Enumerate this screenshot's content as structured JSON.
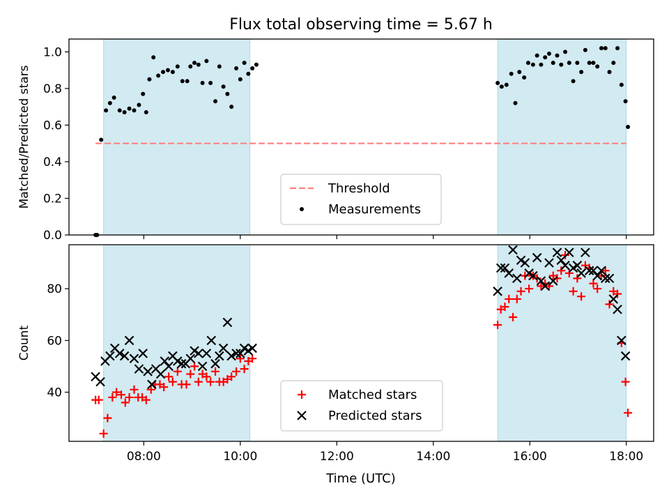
{
  "chart_data": {
    "title": "Flux total observing time = 5.67 h",
    "xlabel": "Time (UTC)",
    "x_ticks": [
      "08:00",
      "10:00",
      "12:00",
      "14:00",
      "16:00",
      "18:00"
    ],
    "x_range": [
      "06:27",
      "18:34"
    ],
    "shaded_intervals": [
      [
        "07:10",
        "10:12"
      ],
      [
        "15:20",
        "18:00"
      ]
    ],
    "shade_color": "#add8e6",
    "panels": [
      {
        "type": "scatter",
        "ylabel": "Matched/Predicted stars",
        "ylim": [
          0.0,
          1.07
        ],
        "y_ticks": [
          "0.0",
          "0.2",
          "0.4",
          "0.6",
          "0.8",
          "1.0"
        ],
        "legend_placement": "lower center",
        "threshold": {
          "name": "Threshold",
          "value": 0.5,
          "x": [
            "07:00",
            "18:00"
          ],
          "color": "#ff8080",
          "style": "dashed"
        },
        "series": [
          {
            "name": "Measurements",
            "color": "#000000",
            "marker": "dot",
            "points": [
              [
                "07:00",
                0.0
              ],
              [
                "07:02",
                0.0
              ],
              [
                "07:07",
                0.52
              ],
              [
                "07:13",
                0.68
              ],
              [
                "07:18",
                0.72
              ],
              [
                "07:23",
                0.75
              ],
              [
                "07:30",
                0.68
              ],
              [
                "07:36",
                0.67
              ],
              [
                "07:42",
                0.69
              ],
              [
                "07:48",
                0.68
              ],
              [
                "07:54",
                0.71
              ],
              [
                "07:59",
                0.77
              ],
              [
                "08:03",
                0.67
              ],
              [
                "08:07",
                0.85
              ],
              [
                "08:12",
                0.97
              ],
              [
                "08:18",
                0.87
              ],
              [
                "08:24",
                0.89
              ],
              [
                "08:30",
                0.9
              ],
              [
                "08:36",
                0.89
              ],
              [
                "08:42",
                0.92
              ],
              [
                "08:48",
                0.84
              ],
              [
                "08:54",
                0.84
              ],
              [
                "08:58",
                0.92
              ],
              [
                "09:03",
                0.94
              ],
              [
                "09:08",
                0.93
              ],
              [
                "09:13",
                0.83
              ],
              [
                "09:18",
                0.95
              ],
              [
                "09:23",
                0.83
              ],
              [
                "09:29",
                0.73
              ],
              [
                "09:34",
                0.92
              ],
              [
                "09:39",
                0.81
              ],
              [
                "09:44",
                0.77
              ],
              [
                "09:49",
                0.7
              ],
              [
                "09:55",
                0.91
              ],
              [
                "10:00",
                0.85
              ],
              [
                "10:05",
                0.94
              ],
              [
                "10:10",
                0.88
              ],
              [
                "10:15",
                0.91
              ],
              [
                "10:20",
                0.93
              ],
              [
                "15:20",
                0.83
              ],
              [
                "15:25",
                0.81
              ],
              [
                "15:31",
                0.82
              ],
              [
                "15:37",
                0.88
              ],
              [
                "15:42",
                0.72
              ],
              [
                "15:47",
                0.89
              ],
              [
                "15:53",
                0.86
              ],
              [
                "15:58",
                0.94
              ],
              [
                "16:04",
                0.93
              ],
              [
                "16:09",
                0.98
              ],
              [
                "16:14",
                0.93
              ],
              [
                "16:19",
                0.97
              ],
              [
                "16:24",
                0.99
              ],
              [
                "16:29",
                0.94
              ],
              [
                "16:34",
                0.98
              ],
              [
                "16:39",
                0.93
              ],
              [
                "16:44",
                1.0
              ],
              [
                "16:49",
                0.94
              ],
              [
                "16:54",
                0.84
              ],
              [
                "16:59",
                0.94
              ],
              [
                "17:04",
                0.89
              ],
              [
                "17:09",
                1.01
              ],
              [
                "17:14",
                0.94
              ],
              [
                "17:19",
                0.94
              ],
              [
                "17:24",
                0.92
              ],
              [
                "17:29",
                1.02
              ],
              [
                "17:34",
                1.02
              ],
              [
                "17:39",
                0.89
              ],
              [
                "17:44",
                0.94
              ],
              [
                "17:49",
                1.02
              ],
              [
                "17:54",
                0.82
              ],
              [
                "17:59",
                0.73
              ],
              [
                "18:02",
                0.59
              ]
            ]
          }
        ]
      },
      {
        "type": "scatter",
        "ylabel": "Count",
        "ylim": [
          21,
          97
        ],
        "y_ticks": [
          "40",
          "60",
          "80"
        ],
        "legend_placement": "lower center",
        "series": [
          {
            "name": "Matched stars",
            "color": "#ff0000",
            "marker": "plus",
            "points": [
              [
                "07:00",
                37
              ],
              [
                "07:04",
                37
              ],
              [
                "07:10",
                24
              ],
              [
                "07:15",
                30
              ],
              [
                "07:21",
                38
              ],
              [
                "07:26",
                40
              ],
              [
                "07:32",
                39
              ],
              [
                "07:37",
                36
              ],
              [
                "07:42",
                38
              ],
              [
                "07:48",
                41
              ],
              [
                "07:53",
                38
              ],
              [
                "07:58",
                38
              ],
              [
                "08:03",
                37
              ],
              [
                "08:09",
                41
              ],
              [
                "08:14",
                43
              ],
              [
                "08:20",
                43
              ],
              [
                "08:25",
                42
              ],
              [
                "08:31",
                46
              ],
              [
                "08:36",
                44
              ],
              [
                "08:42",
                48
              ],
              [
                "08:47",
                43
              ],
              [
                "08:53",
                43
              ],
              [
                "08:58",
                47
              ],
              [
                "09:03",
                50
              ],
              [
                "09:08",
                44
              ],
              [
                "09:13",
                47
              ],
              [
                "09:18",
                46
              ],
              [
                "09:23",
                44
              ],
              [
                "09:29",
                48
              ],
              [
                "09:34",
                44
              ],
              [
                "09:39",
                44
              ],
              [
                "09:44",
                45
              ],
              [
                "09:49",
                46
              ],
              [
                "09:55",
                48
              ],
              [
                "10:00",
                53
              ],
              [
                "10:05",
                49
              ],
              [
                "10:10",
                52
              ],
              [
                "10:15",
                53
              ],
              [
                "15:20",
                66
              ],
              [
                "15:24",
                72
              ],
              [
                "15:29",
                73
              ],
              [
                "15:34",
                76
              ],
              [
                "15:39",
                69
              ],
              [
                "15:44",
                76
              ],
              [
                "15:49",
                79
              ],
              [
                "15:54",
                85
              ],
              [
                "15:59",
                80
              ],
              [
                "16:04",
                85
              ],
              [
                "16:09",
                84
              ],
              [
                "16:14",
                81
              ],
              [
                "16:19",
                82
              ],
              [
                "16:24",
                81
              ],
              [
                "16:29",
                85
              ],
              [
                "16:34",
                84
              ],
              [
                "16:39",
                87
              ],
              [
                "16:44",
                93
              ],
              [
                "16:49",
                86
              ],
              [
                "16:54",
                79
              ],
              [
                "16:59",
                84
              ],
              [
                "17:04",
                77
              ],
              [
                "17:09",
                89
              ],
              [
                "17:14",
                88
              ],
              [
                "17:19",
                82
              ],
              [
                "17:24",
                80
              ],
              [
                "17:29",
                85
              ],
              [
                "17:34",
                87
              ],
              [
                "17:39",
                74
              ],
              [
                "17:44",
                79
              ],
              [
                "17:49",
                78
              ],
              [
                "17:54",
                59
              ],
              [
                "17:59",
                44
              ],
              [
                "18:02",
                32
              ]
            ]
          },
          {
            "name": "Predicted stars",
            "color": "#000000",
            "marker": "x",
            "points": [
              [
                "07:00",
                46
              ],
              [
                "07:06",
                44
              ],
              [
                "07:12",
                52
              ],
              [
                "07:18",
                54
              ],
              [
                "07:24",
                57
              ],
              [
                "07:30",
                55
              ],
              [
                "07:36",
                54
              ],
              [
                "07:42",
                60
              ],
              [
                "07:48",
                53
              ],
              [
                "07:54",
                49
              ],
              [
                "07:59",
                55
              ],
              [
                "08:05",
                48
              ],
              [
                "08:10",
                43
              ],
              [
                "08:15",
                49
              ],
              [
                "08:21",
                47
              ],
              [
                "08:26",
                52
              ],
              [
                "08:31",
                50
              ],
              [
                "08:36",
                54
              ],
              [
                "08:42",
                52
              ],
              [
                "08:47",
                51
              ],
              [
                "08:52",
                51
              ],
              [
                "08:58",
                53
              ],
              [
                "09:03",
                56
              ],
              [
                "09:08",
                55
              ],
              [
                "09:13",
                50
              ],
              [
                "09:18",
                55
              ],
              [
                "09:24",
                60
              ],
              [
                "09:29",
                51
              ],
              [
                "09:34",
                54
              ],
              [
                "09:39",
                57
              ],
              [
                "09:44",
                67
              ],
              [
                "09:49",
                54
              ],
              [
                "09:55",
                55
              ],
              [
                "10:00",
                55
              ],
              [
                "10:05",
                57
              ],
              [
                "10:10",
                56
              ],
              [
                "10:15",
                57
              ],
              [
                "15:20",
                79
              ],
              [
                "15:24",
                88
              ],
              [
                "15:29",
                88
              ],
              [
                "15:34",
                86
              ],
              [
                "15:39",
                95
              ],
              [
                "15:44",
                84
              ],
              [
                "15:49",
                91
              ],
              [
                "15:54",
                90
              ],
              [
                "15:59",
                86
              ],
              [
                "16:04",
                85
              ],
              [
                "16:09",
                92
              ],
              [
                "16:14",
                83
              ],
              [
                "16:19",
                81
              ],
              [
                "16:24",
                90
              ],
              [
                "16:29",
                83
              ],
              [
                "16:34",
                94
              ],
              [
                "16:39",
                91
              ],
              [
                "16:44",
                89
              ],
              [
                "16:49",
                94
              ],
              [
                "16:54",
                88
              ],
              [
                "16:59",
                89
              ],
              [
                "17:04",
                86
              ],
              [
                "17:09",
                94
              ],
              [
                "17:14",
                87
              ],
              [
                "17:19",
                87
              ],
              [
                "17:24",
                85
              ],
              [
                "17:29",
                87
              ],
              [
                "17:34",
                84
              ],
              [
                "17:39",
                84
              ],
              [
                "17:44",
                76
              ],
              [
                "17:49",
                72
              ],
              [
                "17:54",
                60
              ],
              [
                "17:59",
                54
              ]
            ]
          }
        ]
      }
    ]
  }
}
